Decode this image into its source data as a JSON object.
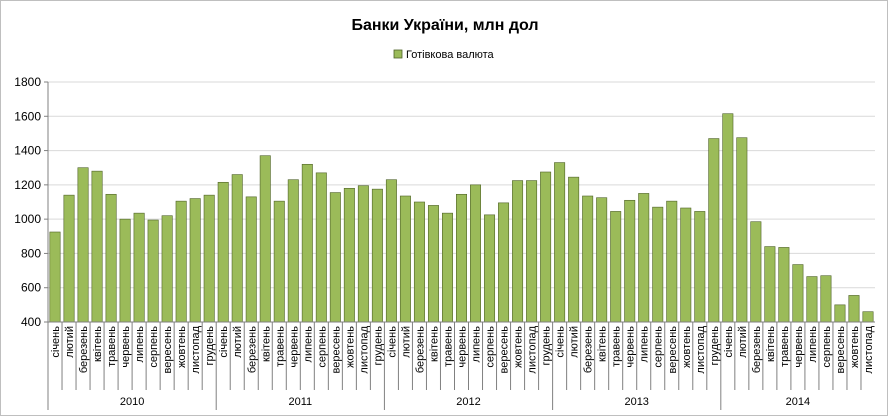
{
  "chart_data": {
    "type": "bar",
    "title": "Банки України, млн дол",
    "legend": {
      "position": "top",
      "entries": [
        "Готівкова валюта"
      ]
    },
    "xlabel": "",
    "ylabel": "",
    "ylim": [
      400,
      1800
    ],
    "yticks": [
      400,
      600,
      800,
      1000,
      1200,
      1400,
      1600,
      1800
    ],
    "grid": true,
    "colors": {
      "bar_fill": "#9bbb59",
      "bar_stroke": "#4f6228",
      "grid": "#d9d9d9"
    },
    "years": [
      {
        "label": "2010",
        "count": 12
      },
      {
        "label": "2011",
        "count": 12
      },
      {
        "label": "2012",
        "count": 12
      },
      {
        "label": "2013",
        "count": 12
      },
      {
        "label": "2014",
        "count": 11
      }
    ],
    "categories": [
      "січень",
      "лютий",
      "березень",
      "квітень",
      "травень",
      "червень",
      "липень",
      "серпень",
      "вересень",
      "жовтень",
      "листопад",
      "грудень",
      "січень",
      "лютий",
      "березень",
      "квітень",
      "травень",
      "червень",
      "липень",
      "серпень",
      "вересень",
      "жовтень",
      "листопад",
      "грудень",
      "січень",
      "лютий",
      "березень",
      "квітень",
      "травень",
      "червень",
      "липень",
      "серпень",
      "вересень",
      "жовтень",
      "листопад",
      "грудень",
      "січень",
      "лютий",
      "березень",
      "квітень",
      "травень",
      "червень",
      "липень",
      "серпень",
      "вересень",
      "жовтень",
      "листопад",
      "грудень",
      "січень",
      "лютий",
      "березень",
      "квітень",
      "травень",
      "червень",
      "липень",
      "серпень",
      "вересень",
      "жовтень",
      "листопад"
    ],
    "series": [
      {
        "name": "Готівкова валюта",
        "values": [
          925,
          1140,
          1300,
          1280,
          1145,
          1000,
          1035,
          995,
          1020,
          1105,
          1120,
          1140,
          1215,
          1260,
          1130,
          1370,
          1105,
          1230,
          1320,
          1270,
          1155,
          1180,
          1195,
          1175,
          1230,
          1135,
          1100,
          1080,
          1035,
          1145,
          1200,
          1025,
          1095,
          1225,
          1225,
          1275,
          1330,
          1245,
          1135,
          1125,
          1045,
          1110,
          1150,
          1070,
          1105,
          1065,
          1045,
          1470,
          1615,
          1475,
          985,
          840,
          835,
          735,
          665,
          670,
          500,
          555,
          460
        ]
      }
    ]
  }
}
